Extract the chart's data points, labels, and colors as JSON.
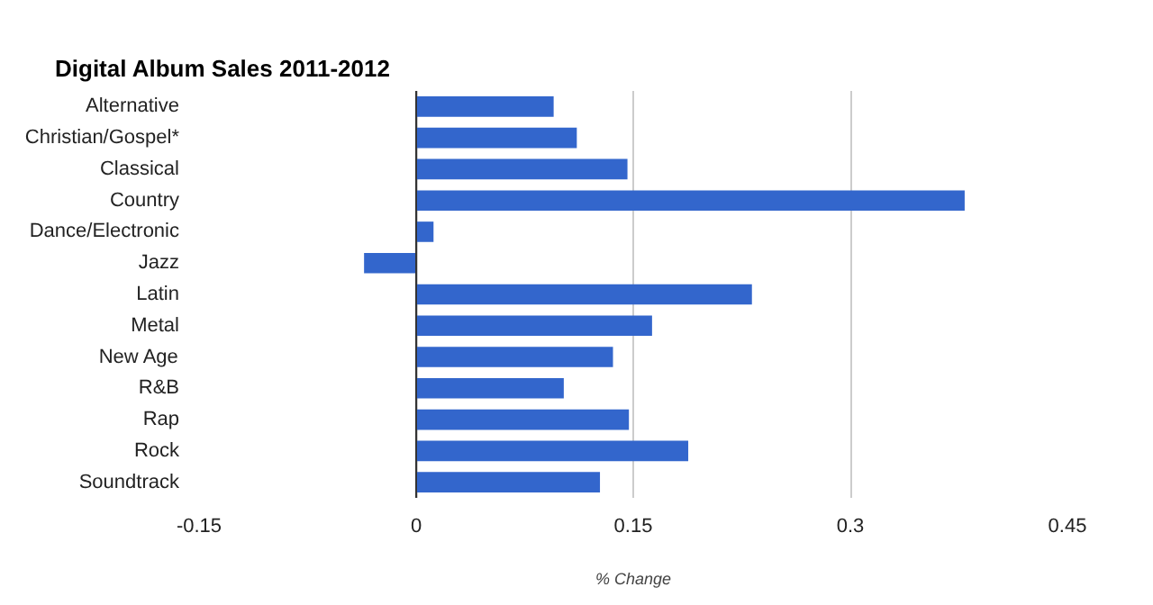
{
  "chart_data": {
    "type": "bar",
    "orientation": "horizontal",
    "title": "Digital Album Sales 2011-2012",
    "xlabel": "% Change",
    "categories": [
      "Alternative",
      "Christian/Gospel*",
      "Classical",
      "Country",
      "Dance/Electronic",
      "Jazz",
      "Latin",
      "Metal",
      "New Age",
      "R&B",
      "Rap",
      "Rock",
      "Soundtrack"
    ],
    "values": [
      0.095,
      0.111,
      0.146,
      0.379,
      0.012,
      -0.036,
      0.232,
      0.163,
      0.136,
      0.102,
      0.147,
      0.188,
      0.127
    ],
    "color": "#3366cc",
    "xlim": [
      -0.15,
      0.45
    ],
    "xticks": [
      -0.15,
      0,
      0.15,
      0.3,
      0.45
    ],
    "grid": "x"
  }
}
